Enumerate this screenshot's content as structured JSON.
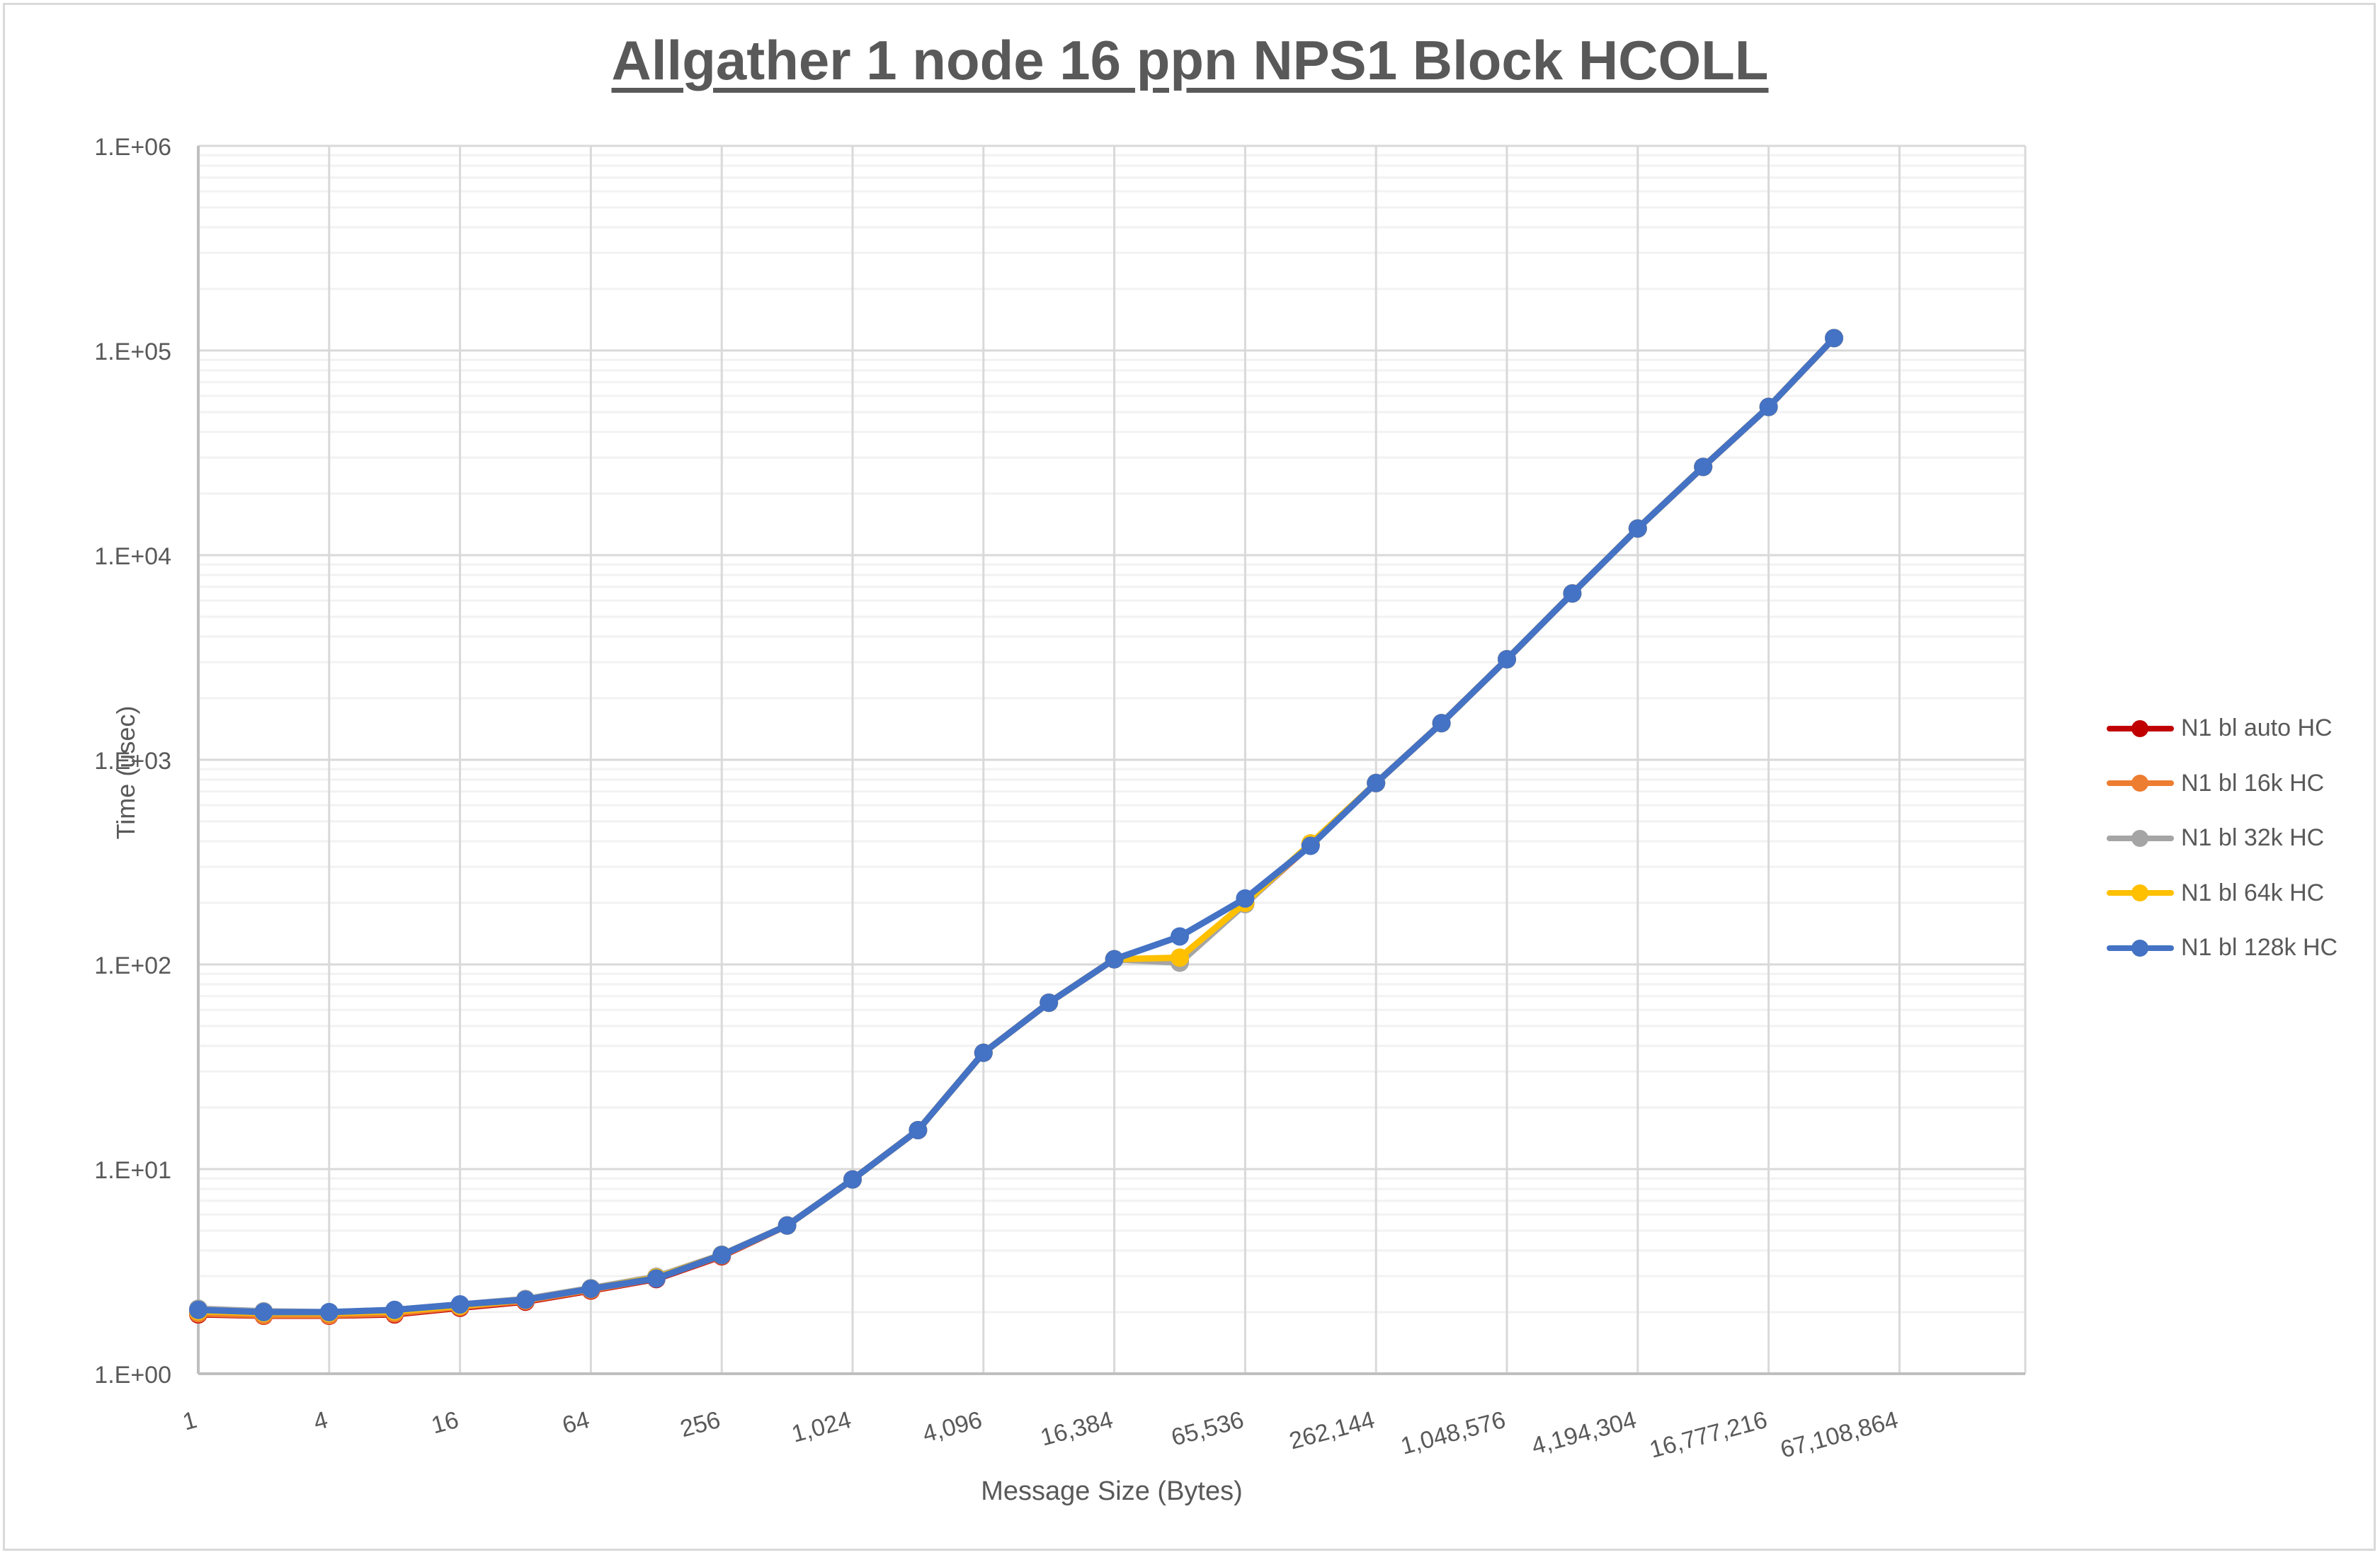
{
  "chart_data": {
    "type": "line",
    "title": "Allgather 1 node 16 ppn NPS1 Block HCOLL",
    "xlabel": "Message Size (Bytes)",
    "ylabel": "Time (usec)",
    "y_scale": "log",
    "ylim": [
      1,
      1000000
    ],
    "y_tick_labels": [
      "1.E+00",
      "1.E+01",
      "1.E+02",
      "1.E+03",
      "1.E+04",
      "1.E+05",
      "1.E+06"
    ],
    "x_tick_labels": [
      "1",
      "4",
      "16",
      "64",
      "256",
      "1,024",
      "4,096",
      "16,384",
      "65,536",
      "262,144",
      "1,048,576",
      "4,194,304",
      "16,777,216",
      "67,108,864"
    ],
    "x": [
      1,
      2,
      4,
      8,
      16,
      32,
      64,
      128,
      256,
      512,
      1024,
      2048,
      4096,
      8192,
      16384,
      32768,
      65536,
      131072,
      262144,
      524288,
      1048576,
      2097152,
      4194304,
      8388608,
      16777216,
      33554432
    ],
    "grid": true,
    "legend_position": "right",
    "series": [
      {
        "name": "N1 bl auto HC",
        "color": "#c00000",
        "values": [
          1.95,
          1.92,
          1.92,
          1.95,
          2.1,
          2.25,
          2.55,
          2.9,
          3.75,
          5.3,
          8.9,
          15.5,
          37,
          65,
          106,
          103,
          198,
          385,
          770,
          1510,
          3100,
          6500,
          13500,
          27000,
          53000,
          115000
        ]
      },
      {
        "name": "N1 bl 16k HC",
        "color": "#ed7d31",
        "values": [
          1.97,
          1.93,
          1.93,
          1.97,
          2.12,
          2.27,
          2.57,
          2.92,
          3.78,
          5.3,
          8.9,
          15.5,
          37,
          65,
          106,
          104,
          199,
          385,
          770,
          1510,
          3100,
          6500,
          13500,
          27000,
          53000,
          115000
        ]
      },
      {
        "name": "N1 bl 32k HC",
        "color": "#a5a5a5",
        "values": [
          2.08,
          2.02,
          2.0,
          2.05,
          2.18,
          2.32,
          2.62,
          2.98,
          3.82,
          5.3,
          8.9,
          15.5,
          37,
          65,
          106,
          102,
          197,
          390,
          770,
          1510,
          3100,
          6500,
          13500,
          27000,
          53000,
          115000
        ]
      },
      {
        "name": "N1 bl 64k HC",
        "color": "#ffc000",
        "values": [
          2.02,
          1.98,
          1.98,
          2.02,
          2.15,
          2.3,
          2.6,
          2.95,
          3.8,
          5.3,
          8.9,
          15.5,
          37,
          65,
          106,
          108,
          200,
          390,
          770,
          1510,
          3100,
          6500,
          13500,
          27000,
          53000,
          115000
        ]
      },
      {
        "name": "N1 bl 128k HC",
        "color": "#4472c4",
        "values": [
          2.05,
          2.0,
          2.0,
          2.05,
          2.18,
          2.3,
          2.6,
          2.92,
          3.8,
          5.3,
          8.9,
          15.5,
          37,
          65,
          106,
          137,
          210,
          380,
          770,
          1510,
          3100,
          6500,
          13500,
          27000,
          53000,
          115000
        ]
      }
    ]
  }
}
